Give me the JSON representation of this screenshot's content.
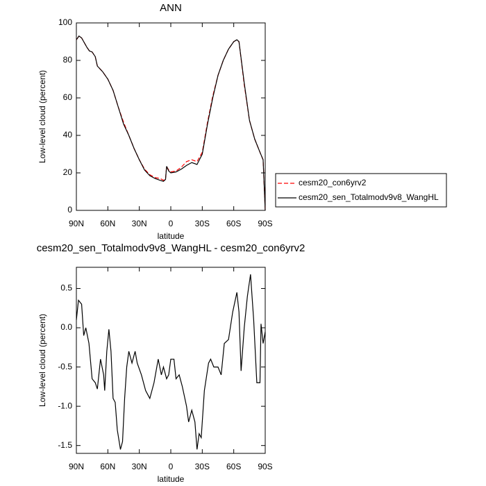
{
  "chart_data": [
    {
      "type": "line",
      "title": "ANN",
      "xlabel": "latitude",
      "ylabel": "Low-level cloud (percent)",
      "x": [
        90,
        87.5,
        85,
        80,
        77.5,
        75,
        72,
        70,
        65,
        60,
        55,
        50,
        45,
        40,
        35,
        30,
        25,
        20,
        15,
        10,
        7,
        5,
        4,
        2,
        0,
        -5,
        -10,
        -15,
        -20,
        -25,
        -30,
        -35,
        -40,
        -45,
        -50,
        -55,
        -60,
        -63,
        -65,
        -70,
        -75,
        -80,
        -85,
        -88,
        -90
      ],
      "series": [
        {
          "name": "cesm20_con6yrv2",
          "color": "#ff0000",
          "line_style": "dashed",
          "values": [
            91,
            93,
            92,
            87,
            85,
            84.5,
            82,
            77,
            74,
            70,
            64,
            55,
            47,
            40,
            33,
            27,
            22,
            19,
            17.5,
            17,
            16,
            17,
            23.5,
            21.5,
            20.5,
            21,
            23,
            26,
            27,
            26,
            31,
            47,
            61,
            72,
            80,
            86,
            90,
            91,
            90,
            67,
            48,
            38,
            31,
            27,
            0
          ]
        },
        {
          "name": "cesm20_sen_Totalmodv9v8_WangHL",
          "color": "#000000",
          "line_style": "solid",
          "values": [
            91,
            93,
            92,
            87,
            85,
            84.5,
            82,
            77,
            74,
            70,
            64,
            55,
            46,
            40,
            33,
            27,
            21.5,
            18.5,
            17,
            16,
            15.5,
            16.5,
            23.5,
            21,
            20,
            20.5,
            22,
            24,
            25.5,
            24.5,
            30,
            46,
            60,
            72,
            80,
            86,
            90,
            91,
            90,
            68,
            48,
            38,
            31,
            27,
            0
          ]
        }
      ],
      "xlim": [
        90,
        -90
      ],
      "xticks": [
        {
          "value": 90,
          "label": "90N"
        },
        {
          "value": 60,
          "label": "60N"
        },
        {
          "value": 30,
          "label": "30N"
        },
        0,
        {
          "value": -30,
          "label": "30S"
        },
        {
          "value": -60,
          "label": "60S"
        },
        {
          "value": -90,
          "label": "90S"
        }
      ],
      "ylim": [
        0,
        100
      ],
      "yticks": [
        0,
        20,
        40,
        60,
        80,
        100
      ],
      "legend": "right"
    },
    {
      "type": "line",
      "title": "cesm20_sen_Totalmodv9v8_WangHL - cesm20_con6yrv2",
      "xlabel": "latitude",
      "ylabel": "Low-level cloud (percent)",
      "x": [
        90,
        88,
        85,
        83,
        81,
        78,
        75,
        72,
        70,
        67,
        64,
        63,
        61,
        59,
        57,
        55,
        53,
        51,
        48,
        46,
        44,
        42,
        40,
        37,
        34,
        32,
        28,
        24,
        20,
        16,
        12,
        9,
        7,
        4,
        2,
        0,
        -3,
        -5,
        -8,
        -11,
        -15,
        -17,
        -20,
        -23,
        -25,
        -27,
        -29,
        -32,
        -36,
        -38,
        -41,
        -45,
        -48,
        -51,
        -55,
        -59,
        -63,
        -65,
        -67,
        -70,
        -73,
        -76,
        -79,
        -82,
        -85,
        -86,
        -88,
        -90
      ],
      "series": [
        {
          "name": "difference",
          "color": "#000000",
          "line_style": "solid",
          "values": [
            0.1,
            0.35,
            0.3,
            -0.1,
            0.0,
            -0.2,
            -0.65,
            -0.7,
            -0.78,
            -0.4,
            -0.6,
            -0.8,
            -0.3,
            -0.02,
            -0.3,
            -0.9,
            -0.95,
            -1.3,
            -1.55,
            -1.45,
            -0.9,
            -0.5,
            -0.3,
            -0.45,
            -0.3,
            -0.45,
            -0.6,
            -0.8,
            -0.9,
            -0.7,
            -0.4,
            -0.6,
            -0.5,
            -0.65,
            -0.6,
            -0.4,
            -0.4,
            -0.65,
            -0.6,
            -0.75,
            -1.0,
            -1.2,
            -1.05,
            -1.2,
            -1.55,
            -1.35,
            -1.4,
            -0.8,
            -0.45,
            -0.4,
            -0.5,
            -0.5,
            -0.6,
            -0.2,
            -0.15,
            0.2,
            0.45,
            0.2,
            -0.55,
            0.0,
            0.4,
            0.68,
            0.1,
            -0.7,
            -0.7,
            0.05,
            -0.2,
            -0.05
          ]
        }
      ],
      "xlim": [
        90,
        -90
      ],
      "xticks": [
        {
          "value": 90,
          "label": "90N"
        },
        {
          "value": 60,
          "label": "60N"
        },
        {
          "value": 30,
          "label": "30N"
        },
        0,
        {
          "value": -30,
          "label": "30S"
        },
        {
          "value": -60,
          "label": "60S"
        },
        {
          "value": -90,
          "label": "90S"
        }
      ],
      "ylim": [
        -1.6,
        0.77
      ],
      "yticks": [
        {
          "value": -1.5,
          "label": "-1.5"
        },
        {
          "value": -1,
          "label": "-1.0"
        },
        -0.5,
        {
          "value": 0,
          "label": "0.0"
        },
        0.5
      ]
    }
  ]
}
